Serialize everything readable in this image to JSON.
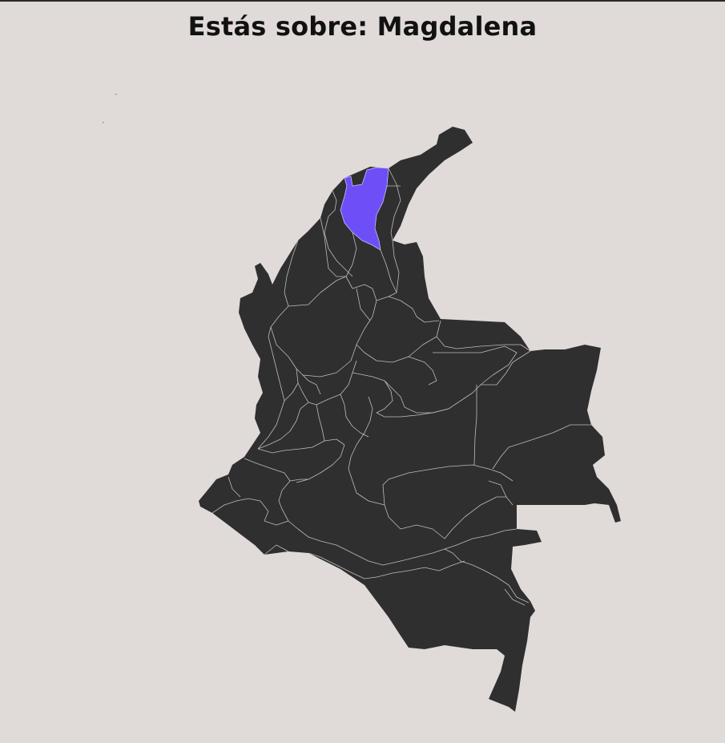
{
  "header": {
    "prefix": "Estás sobre:",
    "department": "Magdalena"
  },
  "map": {
    "highlighted_department": "Magdalena",
    "colors": {
      "background": "#e0dad9",
      "land": "#2f2f2f",
      "borders": "#bdbdbd",
      "highlight": "#6e4ef7"
    }
  }
}
